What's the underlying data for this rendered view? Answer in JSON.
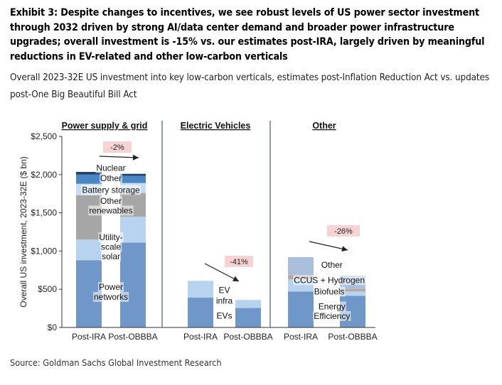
{
  "title": "Exhibit 3: Despite changes to incentives, we see robust levels of US power sector investment through 2032 driven by strong AI/data center demand and broader power infrastructure upgrades; overall investment is -15% vs. our estimates post-IRA, largely driven by meaningful reductions in EV-related and other low-carbon verticals",
  "subtitle": "Overall 2023-32E US investment into key low-carbon verticals, estimates post-Inflation Reduction Act vs. updates post-One Big Beautiful Bill Act",
  "source": "Source: Goldman Sachs Global Investment Research",
  "chart_data": {
    "type": "bar",
    "stacked": true,
    "ylabel": "Overall  US investment, 2023-32E  ($ bn)",
    "ylim": [
      0,
      2500
    ],
    "yticks": [
      0,
      500,
      1000,
      1500,
      2000,
      2500
    ],
    "ytick_labels": [
      "$0",
      "$500",
      "$1,000",
      "$1,500",
      "$2,000",
      "$2,500"
    ],
    "grid": false,
    "categories": [
      "Post-IRA",
      "Post-OBBBA",
      "Post-IRA",
      "Post-OBBBA",
      "Post-IRA",
      "Post-OBBBA"
    ],
    "groups": [
      {
        "name": "Power supply & grid",
        "category_index": [
          0,
          1
        ],
        "change": "-2%"
      },
      {
        "name": "Electric Vehicles",
        "category_index": [
          2,
          3
        ],
        "change": "-41%"
      },
      {
        "name": "Other",
        "category_index": [
          4,
          5
        ],
        "change": "-26%"
      }
    ],
    "series": [
      {
        "name": "Power networks",
        "color": "#6f98c9",
        "values": [
          880,
          1110,
          0,
          0,
          0,
          0
        ]
      },
      {
        "name": "Utility-scale solar",
        "color": "#b8d3ef",
        "values": [
          270,
          340,
          0,
          0,
          0,
          0
        ]
      },
      {
        "name": "Other renewables",
        "color": "#a6a6a6",
        "values": [
          580,
          310,
          0,
          0,
          0,
          0
        ]
      },
      {
        "name": "Battery storage",
        "color": "#c5dcf2",
        "values": [
          150,
          130,
          0,
          0,
          0,
          0
        ]
      },
      {
        "name": "Other",
        "color": "#4a86c4",
        "values": [
          120,
          95,
          0,
          0,
          0,
          0
        ]
      },
      {
        "name": "Nuclear",
        "color": "#1c3f6e",
        "values": [
          35,
          25,
          0,
          0,
          0,
          0
        ]
      },
      {
        "name": "EVs",
        "color": "#6f98c9",
        "values": [
          0,
          0,
          390,
          255,
          0,
          0
        ]
      },
      {
        "name": "EV infra",
        "color": "#b8d3ef",
        "values": [
          0,
          0,
          220,
          105,
          0,
          0
        ]
      },
      {
        "name": "Energy Efficiency",
        "color": "#6f98c9",
        "values": [
          0,
          0,
          0,
          0,
          470,
          415
        ]
      },
      {
        "name": "Biofuels",
        "color": "#b8d3ef",
        "values": [
          0,
          0,
          0,
          0,
          160,
          55
        ]
      },
      {
        "name": "CCUS + Hydrogen",
        "color": "#b7a8a0",
        "values": [
          0,
          0,
          0,
          0,
          55,
          35
        ]
      },
      {
        "name": "Other",
        "color": "#a9bfdc",
        "values": [
          0,
          0,
          0,
          0,
          235,
          175
        ]
      }
    ],
    "segment_labels": [
      {
        "text": "Nuclear",
        "x": 0.5,
        "y": 2085
      },
      {
        "text": "Other",
        "x": 0.5,
        "y": 1952
      },
      {
        "text": "Battery storage",
        "x": 0.5,
        "y": 1800
      },
      {
        "text": "Other",
        "x": 0.5,
        "y": 1655
      },
      {
        "text": "renewables",
        "x": 0.5,
        "y": 1530
      },
      {
        "text": "Utility-",
        "x": 0.5,
        "y": 1180
      },
      {
        "text": "scale",
        "x": 0.5,
        "y": 1055
      },
      {
        "text": "solar",
        "x": 0.5,
        "y": 930
      },
      {
        "text": "Power",
        "x": 0.5,
        "y": 530
      },
      {
        "text": "networks",
        "x": 0.5,
        "y": 400
      },
      {
        "text": "EV",
        "x": 2.5,
        "y": 490
      },
      {
        "text": "infra",
        "x": 2.5,
        "y": 350
      },
      {
        "text": "EVs",
        "x": 2.5,
        "y": 155
      },
      {
        "text": "Other",
        "x": 4.6,
        "y": 820
      },
      {
        "text": "CCUS + Hydrogen",
        "x": 4.55,
        "y": 620
      },
      {
        "text": "Biofuels",
        "x": 4.55,
        "y": 470
      },
      {
        "text": "Energy",
        "x": 4.6,
        "y": 275
      },
      {
        "text": "Efficiency",
        "x": 4.6,
        "y": 150
      }
    ]
  }
}
